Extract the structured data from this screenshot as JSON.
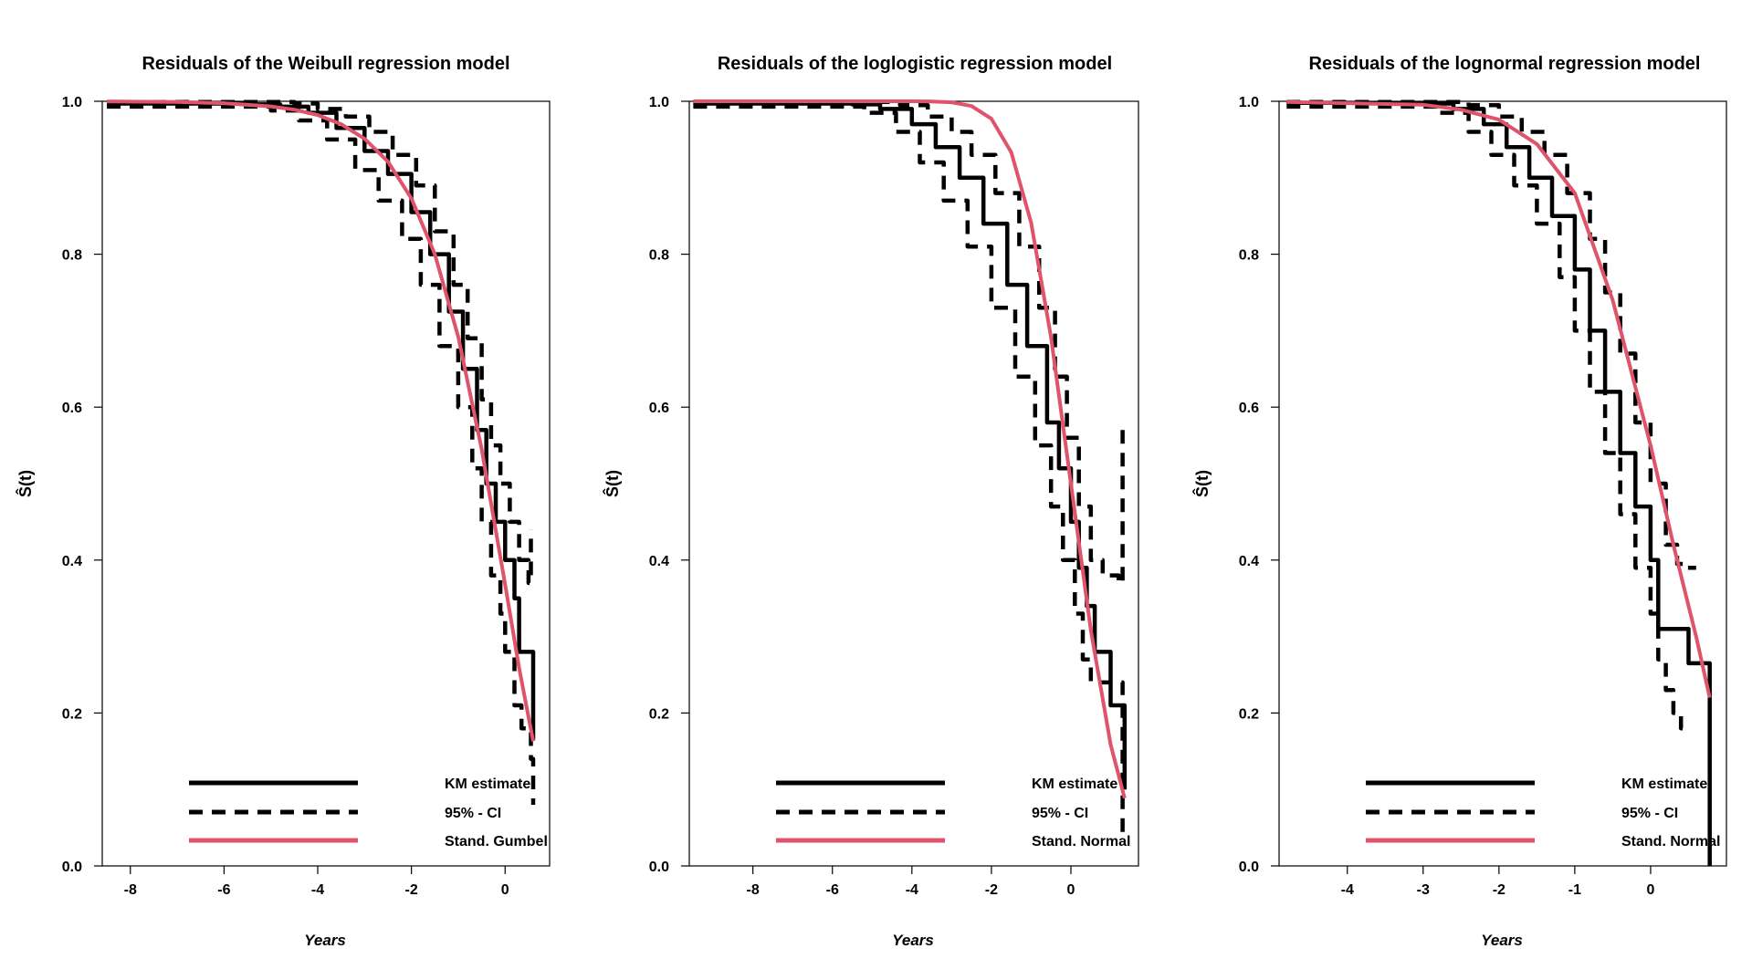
{
  "chart_data": [
    {
      "type": "line",
      "title": "Residuals of the Weibull regression model",
      "xlabel": "Years",
      "ylabel": "Ŝ(t)",
      "xlim": [
        -8.6,
        0.95
      ],
      "ylim": [
        0,
        1
      ],
      "x_ticks": [
        -8,
        -6,
        -4,
        -2,
        0
      ],
      "x_tick_labels": [
        "-8",
        "-6",
        "-4",
        "-2",
        "0"
      ],
      "y_ticks": [
        0,
        0.2,
        0.4,
        0.6,
        0.8,
        1
      ],
      "y_tick_labels": [
        "0.0",
        "0.2",
        "0.4",
        "0.6",
        "0.8",
        "1.0"
      ],
      "legend": {
        "position": "bottom-right",
        "entries": [
          "KM estimate",
          "95% - CI",
          "Stand. Gumbel"
        ]
      },
      "series": [
        {
          "name": "KM estimate",
          "style": "step",
          "color": "#000000",
          "x": [
            -8.5,
            -5.5,
            -4.8,
            -4.2,
            -3.6,
            -3.0,
            -2.5,
            -2.0,
            -1.6,
            -1.2,
            -0.9,
            -0.6,
            -0.4,
            -0.2,
            0.0,
            0.2,
            0.3,
            0.5,
            0.6
          ],
          "y": [
            0.997,
            0.996,
            0.993,
            0.985,
            0.965,
            0.935,
            0.905,
            0.855,
            0.8,
            0.725,
            0.65,
            0.57,
            0.5,
            0.45,
            0.4,
            0.35,
            0.28,
            0.28,
            0.165
          ]
        },
        {
          "name": "95% - CI",
          "style": "step-dashed",
          "color": "#000000",
          "x": [
            -8.5,
            -5.2,
            -4.5,
            -4.0,
            -3.4,
            -2.9,
            -2.4,
            -1.9,
            -1.5,
            -1.1,
            -0.8,
            -0.5,
            -0.3,
            -0.1,
            0.1,
            0.3,
            0.5,
            0.55
          ],
          "y": [
            0.999,
            0.999,
            0.997,
            0.99,
            0.98,
            0.96,
            0.93,
            0.89,
            0.83,
            0.76,
            0.69,
            0.61,
            0.55,
            0.5,
            0.45,
            0.4,
            0.37,
            0.44
          ]
        },
        {
          "name": "95% - CI",
          "style": "step-dashed",
          "color": "#000000",
          "x": [
            -8.5,
            -5.8,
            -5.0,
            -4.4,
            -3.8,
            -3.2,
            -2.7,
            -2.2,
            -1.8,
            -1.4,
            -1.0,
            -0.7,
            -0.5,
            -0.3,
            -0.1,
            0.0,
            0.2,
            0.35,
            0.55,
            0.6
          ],
          "y": [
            0.993,
            0.993,
            0.988,
            0.975,
            0.95,
            0.91,
            0.87,
            0.82,
            0.76,
            0.68,
            0.6,
            0.52,
            0.45,
            0.38,
            0.33,
            0.28,
            0.21,
            0.18,
            0.14,
            0.08
          ]
        },
        {
          "name": "Stand. Gumbel",
          "style": "line",
          "color": "#DF536B",
          "x": [
            -8.5,
            -7,
            -6,
            -5,
            -4.5,
            -4,
            -3.5,
            -3,
            -2.5,
            -2,
            -1.5,
            -1,
            -0.5,
            0,
            0.3,
            0.6
          ],
          "y": [
            0.9998,
            0.9991,
            0.9975,
            0.9933,
            0.989,
            0.982,
            0.97,
            0.951,
            0.921,
            0.873,
            0.8,
            0.692,
            0.545,
            0.368,
            0.259,
            0.163
          ]
        }
      ]
    },
    {
      "type": "line",
      "title": "Residuals of the loglogistic regression model",
      "xlabel": "Years",
      "ylabel": "Ŝ(t)",
      "xlim": [
        -9.6,
        1.7
      ],
      "ylim": [
        0,
        1
      ],
      "x_ticks": [
        -8,
        -6,
        -4,
        -2,
        0
      ],
      "x_tick_labels": [
        "-8",
        "-6",
        "-4",
        "-2",
        "0"
      ],
      "y_ticks": [
        0,
        0.2,
        0.4,
        0.6,
        0.8,
        1
      ],
      "y_tick_labels": [
        "0.0",
        "0.2",
        "0.4",
        "0.6",
        "0.8",
        "1.0"
      ],
      "legend": {
        "position": "bottom-right",
        "entries": [
          "KM estimate",
          "95% - CI",
          "Stand. Normal"
        ]
      },
      "series": [
        {
          "name": "KM estimate",
          "style": "step",
          "color": "#000000",
          "x": [
            -9.5,
            -5.5,
            -4.8,
            -4.0,
            -3.4,
            -2.8,
            -2.2,
            -1.6,
            -1.1,
            -0.6,
            -0.3,
            0.0,
            0.2,
            0.4,
            0.6,
            0.8,
            1.0,
            1.3,
            1.35
          ],
          "y": [
            0.997,
            0.996,
            0.99,
            0.97,
            0.94,
            0.9,
            0.84,
            0.76,
            0.68,
            0.58,
            0.52,
            0.45,
            0.39,
            0.34,
            0.28,
            0.28,
            0.21,
            0.21,
            0.1
          ]
        },
        {
          "name": "95% - CI",
          "style": "step-dashed",
          "color": "#000000",
          "x": [
            -9.5,
            -5.0,
            -4.3,
            -3.6,
            -3.0,
            -2.5,
            -1.9,
            -1.3,
            -0.8,
            -0.4,
            -0.1,
            0.2,
            0.5,
            0.8,
            1.2,
            1.3
          ],
          "y": [
            0.999,
            0.999,
            0.995,
            0.98,
            0.96,
            0.93,
            0.88,
            0.81,
            0.73,
            0.64,
            0.56,
            0.47,
            0.4,
            0.38,
            0.37,
            0.57
          ]
        },
        {
          "name": "95% - CI",
          "style": "step-dashed",
          "color": "#000000",
          "x": [
            -9.5,
            -6.0,
            -5.2,
            -4.4,
            -3.8,
            -3.2,
            -2.6,
            -2.0,
            -1.4,
            -0.9,
            -0.5,
            -0.2,
            0.1,
            0.3,
            0.5,
            0.7,
            1.3
          ],
          "y": [
            0.993,
            0.993,
            0.985,
            0.96,
            0.92,
            0.87,
            0.81,
            0.73,
            0.64,
            0.55,
            0.47,
            0.4,
            0.33,
            0.27,
            0.24,
            0.24,
            0.04
          ]
        },
        {
          "name": "Stand. Normal",
          "style": "line",
          "color": "#DF536B",
          "x": [
            -9.5,
            -4,
            -3.5,
            -3,
            -2.5,
            -2,
            -1.5,
            -1,
            -0.5,
            0,
            0.5,
            1,
            1.35
          ],
          "y": [
            1.0,
            0.99997,
            0.9998,
            0.9987,
            0.9938,
            0.9772,
            0.9332,
            0.8413,
            0.6915,
            0.5,
            0.3085,
            0.1587,
            0.0885
          ]
        }
      ]
    },
    {
      "type": "line",
      "title": "Residuals of the lognormal regression model",
      "xlabel": "Years",
      "ylabel": "Ŝ(t)",
      "xlim": [
        -4.9,
        1.0
      ],
      "ylim": [
        0,
        1
      ],
      "x_ticks": [
        -4,
        -3,
        -2,
        -1,
        0
      ],
      "x_tick_labels": [
        "-4",
        "-3",
        "-2",
        "-1",
        "0"
      ],
      "y_ticks": [
        0,
        0.2,
        0.4,
        0.6,
        0.8,
        1
      ],
      "y_tick_labels": [
        "0.0",
        "0.2",
        "0.4",
        "0.6",
        "0.8",
        "1.0"
      ],
      "legend": {
        "position": "bottom-right",
        "entries": [
          "KM estimate",
          "95% - CI",
          "Stand. Normal"
        ]
      },
      "series": [
        {
          "name": "KM estimate",
          "style": "step",
          "color": "#000000",
          "x": [
            -4.8,
            -3.0,
            -2.6,
            -2.2,
            -1.9,
            -1.6,
            -1.3,
            -1.0,
            -0.8,
            -0.6,
            -0.4,
            -0.2,
            0.0,
            0.1,
            0.2,
            0.45,
            0.5,
            0.75,
            0.78
          ],
          "y": [
            0.998,
            0.997,
            0.99,
            0.97,
            0.94,
            0.9,
            0.85,
            0.78,
            0.7,
            0.62,
            0.54,
            0.47,
            0.4,
            0.31,
            0.31,
            0.31,
            0.265,
            0.265,
            0.0
          ]
        },
        {
          "name": "95% - CI",
          "style": "step-dashed",
          "color": "#000000",
          "x": [
            -4.8,
            -2.8,
            -2.4,
            -2.0,
            -1.7,
            -1.4,
            -1.1,
            -0.8,
            -0.6,
            -0.4,
            -0.2,
            0.0,
            0.2,
            0.35,
            0.45,
            0.6
          ],
          "y": [
            0.999,
            0.999,
            0.995,
            0.98,
            0.96,
            0.93,
            0.88,
            0.82,
            0.75,
            0.67,
            0.58,
            0.5,
            0.42,
            0.395,
            0.39,
            0.39
          ]
        },
        {
          "name": "95% - CI",
          "style": "step-dashed",
          "color": "#000000",
          "x": [
            -4.8,
            -3.2,
            -2.8,
            -2.4,
            -2.1,
            -1.8,
            -1.5,
            -1.2,
            -1.0,
            -0.8,
            -0.6,
            -0.4,
            -0.2,
            0.0,
            0.1,
            0.2,
            0.3,
            0.4,
            0.5
          ],
          "y": [
            0.993,
            0.993,
            0.985,
            0.96,
            0.93,
            0.89,
            0.84,
            0.77,
            0.7,
            0.62,
            0.54,
            0.46,
            0.39,
            0.33,
            0.27,
            0.23,
            0.2,
            0.18,
            0.18
          ]
        },
        {
          "name": "Stand. Normal",
          "style": "line",
          "color": "#DF536B",
          "x": [
            -4.8,
            -3,
            -2.5,
            -2,
            -1.5,
            -1,
            -0.5,
            0,
            0.3,
            0.6,
            0.78
          ],
          "y": [
            0.9992,
            0.9955,
            0.989,
            0.976,
            0.944,
            0.88,
            0.74,
            0.55,
            0.42,
            0.3,
            0.22
          ]
        }
      ]
    }
  ]
}
